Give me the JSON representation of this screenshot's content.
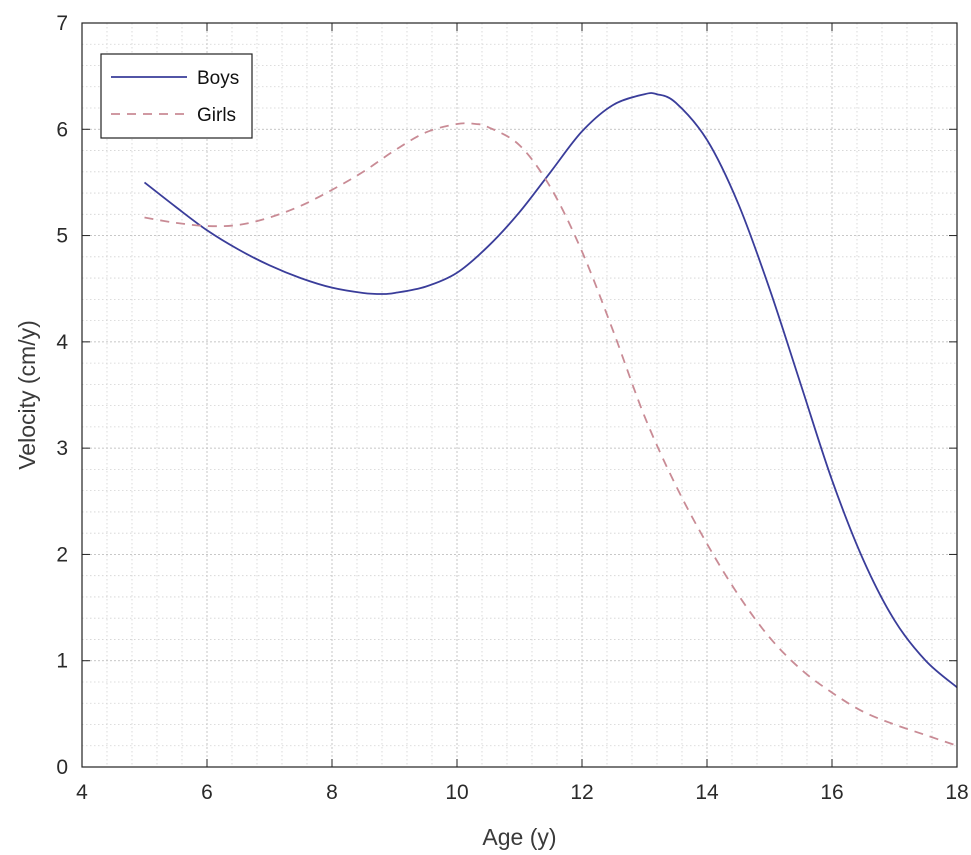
{
  "chart_data": {
    "type": "line",
    "title": "",
    "xlabel": "Age (y)",
    "ylabel": "Velocity (cm/y)",
    "xlim": [
      4,
      18
    ],
    "ylim": [
      0,
      7
    ],
    "xticks": [
      "4",
      "6",
      "8",
      "10",
      "12",
      "14",
      "16",
      "18"
    ],
    "yticks": [
      "0",
      "1",
      "2",
      "3",
      "4",
      "5",
      "6",
      "7"
    ],
    "grid": true,
    "minor_grid": true,
    "legend_position": "top-left",
    "series": [
      {
        "name": "Boys",
        "style": "solid",
        "color": "#3a3d9a",
        "x": [
          5,
          5.5,
          6,
          6.5,
          7,
          7.5,
          8,
          8.5,
          8.8,
          9,
          9.5,
          10,
          10.5,
          11,
          11.5,
          12,
          12.5,
          13,
          13.2,
          13.5,
          14,
          14.5,
          15,
          15.5,
          16,
          16.5,
          17,
          17.5,
          18
        ],
        "y": [
          5.5,
          5.27,
          5.05,
          4.87,
          4.72,
          4.6,
          4.51,
          4.46,
          4.45,
          4.46,
          4.52,
          4.65,
          4.9,
          5.22,
          5.6,
          5.98,
          6.23,
          6.33,
          6.33,
          6.25,
          5.9,
          5.3,
          4.5,
          3.6,
          2.7,
          1.95,
          1.38,
          1.0,
          0.75
        ]
      },
      {
        "name": "Girls",
        "style": "dashed",
        "color": "#c98b95",
        "x": [
          5,
          5.5,
          6,
          6.5,
          7,
          7.5,
          8,
          8.5,
          9,
          9.5,
          10,
          10.3,
          10.5,
          11,
          11.5,
          12,
          12.5,
          13,
          13.5,
          14,
          14.5,
          15,
          15.5,
          16,
          16.5,
          17,
          17.5,
          18
        ],
        "y": [
          5.17,
          5.12,
          5.09,
          5.1,
          5.17,
          5.28,
          5.43,
          5.6,
          5.8,
          5.97,
          6.05,
          6.05,
          6.02,
          5.85,
          5.45,
          4.85,
          4.1,
          3.3,
          2.65,
          2.1,
          1.62,
          1.22,
          0.92,
          0.7,
          0.52,
          0.4,
          0.3,
          0.2
        ]
      }
    ]
  }
}
